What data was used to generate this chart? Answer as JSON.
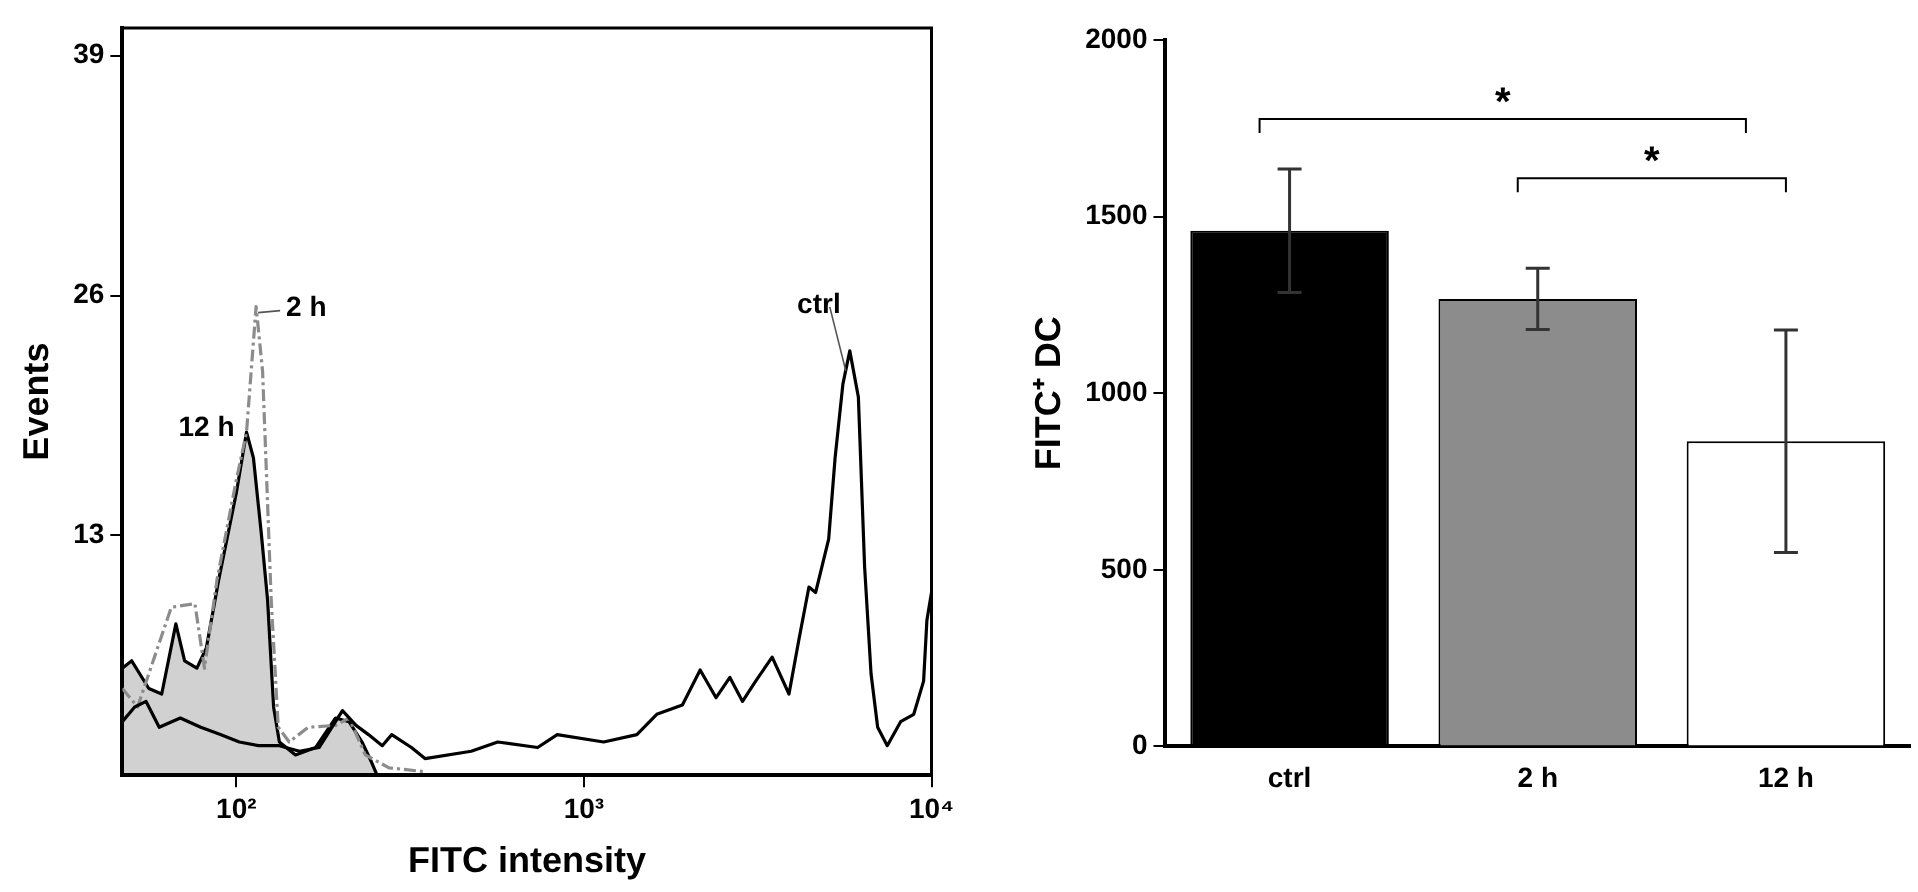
{
  "chart_data": [
    {
      "type": "line",
      "xlabel": "FITC intensity",
      "ylabel": "Events",
      "log": "x",
      "xlim": [
        47,
        10000
      ],
      "ylim": [
        0,
        40.5
      ],
      "xticks": [
        {
          "value": 100,
          "label": "10²"
        },
        {
          "value": 1000,
          "label": "10³"
        },
        {
          "value": 10000,
          "label": "10⁴"
        }
      ],
      "yticks": [
        13,
        26,
        39
      ],
      "grid": false,
      "legend": false,
      "marker": "none",
      "series": [
        {
          "name": "ctrl",
          "color": "#000000",
          "line_style": "solid",
          "x": [
            47,
            51,
            55,
            60,
            69,
            79,
            90,
            102,
            116,
            133,
            152,
            173,
            202,
            221,
            240,
            263,
            280,
            319,
            349,
            474,
            565,
            736,
            838,
            1140,
            1420,
            1620,
            1920,
            2160,
            2400,
            2630,
            2860,
            3120,
            3480,
            3890,
            4150,
            4440,
            4640,
            5060,
            5280,
            5560,
            5820,
            6160,
            6420,
            6700,
            7000,
            7460,
            8150,
            8890,
            9490,
            9700,
            10000
          ],
          "values": [
            2.9,
            3.7,
            4.0,
            2.6,
            3.1,
            2.6,
            2.2,
            1.8,
            1.6,
            1.6,
            1.3,
            1.5,
            3.5,
            2.7,
            2.2,
            1.6,
            2.2,
            1.5,
            0.9,
            1.3,
            1.8,
            1.5,
            2.2,
            1.8,
            2.2,
            3.3,
            3.8,
            5.7,
            4.2,
            5.3,
            4.0,
            5.1,
            6.4,
            4.4,
            7.3,
            10.2,
            9.9,
            12.8,
            17.2,
            21.2,
            23.0,
            20.5,
            11.3,
            5.5,
            2.6,
            1.6,
            2.9,
            3.3,
            5.1,
            8.4,
            9.9
          ]
        },
        {
          "name": "2 h",
          "color": "#8c8c8c",
          "line_style": "dashed",
          "x": [
            47,
            52,
            65,
            76,
            81,
            88,
            100,
            107,
            114,
            119,
            126,
            132,
            142,
            161,
            193,
            211,
            235,
            275,
            344
          ],
          "values": [
            4.7,
            3.7,
            9.1,
            9.3,
            5.8,
            10.6,
            16.0,
            18.6,
            25.4,
            21.9,
            9.5,
            2.6,
            1.8,
            2.6,
            2.7,
            3.1,
            1.1,
            0.4,
            0.2
          ]
        },
        {
          "name": "12 h",
          "type": "area",
          "color": "#000000",
          "line_style": "solid",
          "x": [
            47,
            50,
            56,
            61,
            67,
            71,
            77,
            82,
            89,
            100,
            107,
            112,
            118,
            123,
            128,
            133,
            148,
            169,
            193,
            211,
            230,
            245,
            254
          ],
          "values": [
            5.8,
            6.2,
            4.7,
            4.4,
            8.2,
            6.2,
            5.8,
            6.9,
            10.6,
            15.3,
            18.6,
            17.2,
            13.1,
            9.5,
            3.7,
            1.8,
            1.1,
            1.5,
            3.1,
            2.9,
            1.8,
            0.7,
            0
          ]
        }
      ]
    },
    {
      "type": "bar",
      "ylabel": "FITC⁺ DC",
      "categories": [
        "ctrl",
        "2 h",
        "12 h"
      ],
      "values": [
        1460,
        1267,
        864
      ],
      "colors": [
        "#000000",
        "#8c8c8c",
        "#ffffff"
      ],
      "errors": [
        175,
        87,
        315
      ],
      "ylim": [
        0,
        2000
      ],
      "yticks": [
        0,
        500,
        1000,
        1500,
        2000
      ],
      "grid": false,
      "legend": false,
      "annotations": [
        "*",
        "*"
      ]
    }
  ]
}
